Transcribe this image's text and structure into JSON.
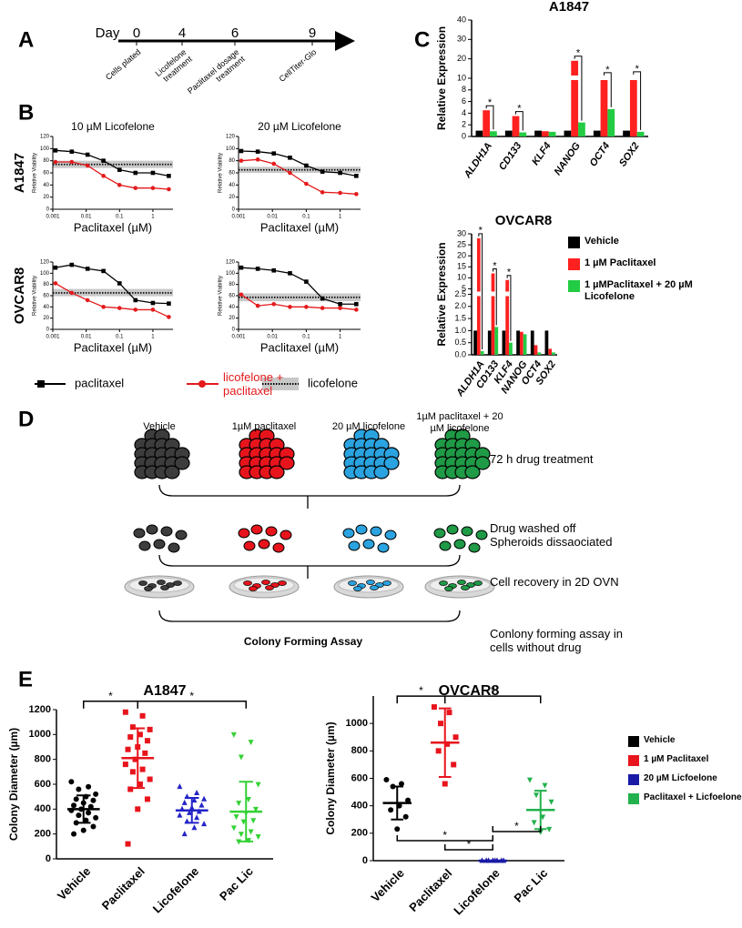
{
  "panel_labels": [
    "A",
    "B",
    "C",
    "D",
    "E"
  ],
  "timeline": {
    "axis_label": "Day",
    "days": [
      0,
      4,
      6,
      9
    ],
    "events": [
      "Cells plated",
      "Licofelone treatment",
      "Paclitaxel dosage treatment",
      "CellTiter-Glo"
    ]
  },
  "chart_data": [
    {
      "type": "dose-response",
      "title": "10 µM Licofelone",
      "row_label": "A1847",
      "x_label": "Paclitaxel (µM)",
      "y_label": "Relative Viability",
      "log_x": true,
      "xlim": [
        0.001,
        4
      ],
      "xticks": [
        0.001,
        0.01,
        0.1,
        1
      ],
      "ylim": [
        0,
        120
      ],
      "yticks": [
        0,
        20,
        40,
        60,
        80,
        100,
        120
      ],
      "x": [
        0.0012,
        0.0037,
        0.011,
        0.033,
        0.1,
        0.3,
        1,
        3
      ],
      "legend": "bottom",
      "series": [
        {
          "name": "paclitaxel",
          "color": "#000000",
          "marker": "square",
          "values": [
            97,
            95,
            90,
            80,
            65,
            60,
            60,
            55
          ]
        },
        {
          "name": "licofelone + paclitaxel",
          "color": "#e41a1c",
          "marker": "circle",
          "values": [
            78,
            78,
            72,
            55,
            40,
            35,
            35,
            33
          ]
        }
      ],
      "reference": {
        "name": "licofelone",
        "value": 74,
        "band": [
          68,
          80
        ],
        "color": "#c8c8c8"
      }
    },
    {
      "type": "dose-response",
      "title": "20 µM Licofelone",
      "x_label": "Paclitaxel (µM)",
      "y_label": "Relative Viability",
      "log_x": true,
      "xlim": [
        0.001,
        4
      ],
      "xticks": [
        0.001,
        0.01,
        0.1,
        1
      ],
      "ylim": [
        0,
        120
      ],
      "yticks": [
        0,
        20,
        40,
        60,
        80,
        100,
        120
      ],
      "x": [
        0.0012,
        0.0037,
        0.011,
        0.033,
        0.1,
        0.3,
        1,
        3
      ],
      "series": [
        {
          "color": "#000000",
          "marker": "square",
          "values": [
            96,
            95,
            92,
            85,
            72,
            62,
            60,
            55
          ]
        },
        {
          "color": "#e41a1c",
          "marker": "circle",
          "values": [
            80,
            82,
            75,
            60,
            42,
            28,
            27,
            25
          ]
        }
      ],
      "reference": {
        "value": 65,
        "band": [
          60,
          70
        ],
        "color": "#c8c8c8"
      }
    },
    {
      "type": "dose-response",
      "row_label": "OVCAR8",
      "x_label": "Paclitaxel (µM)",
      "y_label": "Relative Viability",
      "log_x": true,
      "xlim": [
        0.001,
        4
      ],
      "xticks": [
        0.001,
        0.01,
        0.1,
        1
      ],
      "ylim": [
        0,
        120
      ],
      "yticks": [
        0,
        20,
        40,
        60,
        80,
        100,
        120
      ],
      "x": [
        0.0012,
        0.0037,
        0.011,
        0.033,
        0.1,
        0.3,
        1,
        3
      ],
      "series": [
        {
          "color": "#000000",
          "marker": "square",
          "values": [
            110,
            115,
            108,
            104,
            82,
            52,
            47,
            46
          ]
        },
        {
          "color": "#e41a1c",
          "marker": "circle",
          "values": [
            82,
            65,
            52,
            40,
            38,
            35,
            35,
            22
          ]
        }
      ],
      "reference": {
        "value": 65,
        "band": [
          59,
          72
        ],
        "color": "#c8c8c8"
      }
    },
    {
      "type": "dose-response",
      "x_label": "Paclitaxel (µM)",
      "y_label": "Relative Viability",
      "log_x": true,
      "xlim": [
        0.001,
        4
      ],
      "xticks": [
        0.001,
        0.01,
        0.1,
        1
      ],
      "ylim": [
        0,
        120
      ],
      "yticks": [
        0,
        20,
        40,
        60,
        80,
        100,
        120
      ],
      "x": [
        0.0012,
        0.0037,
        0.011,
        0.033,
        0.1,
        0.3,
        1,
        3
      ],
      "series": [
        {
          "color": "#000000",
          "marker": "square",
          "values": [
            110,
            108,
            105,
            100,
            85,
            55,
            45,
            45
          ]
        },
        {
          "color": "#e41a1c",
          "marker": "circle",
          "values": [
            62,
            42,
            45,
            40,
            40,
            38,
            38,
            35
          ]
        }
      ],
      "reference": {
        "value": 57,
        "band": [
          50,
          64
        ],
        "color": "#c8c8c8"
      }
    },
    {
      "type": "grouped-bar",
      "title": "A1847",
      "y_label": "Relative Expression",
      "categories": [
        "ALDH1A",
        "CD133",
        "KLF4",
        "NANOG",
        "OCT4",
        "SOX2"
      ],
      "ylim": [
        0,
        40
      ],
      "ybreak": 10,
      "yticks": [
        0,
        2,
        4,
        6,
        8,
        10,
        20,
        30,
        40
      ],
      "series": [
        {
          "color": "#000000",
          "values": [
            1,
            1,
            1,
            1,
            1,
            1
          ]
        },
        {
          "color": "#ff2020",
          "values": [
            4.5,
            3.5,
            0.9,
            19,
            10.5,
            11
          ]
        },
        {
          "color": "#22cc44",
          "values": [
            0.9,
            0.7,
            0.8,
            2.4,
            4.7,
            0.8
          ]
        }
      ],
      "significance": [
        "*",
        "*",
        null,
        "*",
        "*",
        "*"
      ]
    },
    {
      "type": "grouped-bar",
      "title": "OVCAR8",
      "y_label": "Relative Expression",
      "categories": [
        "ALDH1A",
        "CD133",
        "KLF4",
        "NANOG",
        "OCT4",
        "SOX2"
      ],
      "ylim": [
        0,
        30
      ],
      "ybreak": 2.5,
      "yticks": [
        {
          "value": 0,
          "label": "0.0"
        },
        0.5,
        {
          "value": 1,
          "label": "1.0"
        },
        1.5,
        {
          "value": 2,
          "label": "2.0"
        },
        2.5,
        5,
        10,
        15,
        20,
        25,
        30
      ],
      "legend": true,
      "series": [
        {
          "name": "Vehicle",
          "color": "#000000",
          "values": [
            1,
            1,
            1,
            1,
            1,
            1
          ]
        },
        {
          "name": "1 µM Paclitaxel",
          "color": "#ff2020",
          "values": [
            28,
            12,
            9,
            0.95,
            0.4,
            0.25
          ]
        },
        {
          "name": "1 µMPaclitaxel + 20 µM Licofelone",
          "color": "#22cc44",
          "values": [
            0.15,
            1.15,
            0.5,
            0.85,
            0.1,
            0.1
          ]
        }
      ],
      "significance": [
        "*",
        "*",
        "*",
        null,
        null,
        null
      ]
    },
    {
      "type": "strip",
      "title": "A1847",
      "y_label": "Colony Diameter (µm)",
      "categories": [
        "Vehicle",
        "Paclitaxel",
        "Licofelone",
        "Pac Lic"
      ],
      "ylim": [
        0,
        1200
      ],
      "yticks": [
        0,
        200,
        400,
        600,
        800,
        1000,
        1200
      ],
      "series": [
        {
          "color": "#000000",
          "marker": "circle",
          "mean": 400,
          "sd": 110,
          "values": [
            620,
            580,
            560,
            520,
            500,
            480,
            470,
            450,
            430,
            420,
            400,
            390,
            370,
            350,
            330,
            310,
            290,
            260,
            230,
            200
          ]
        },
        {
          "color": "#e8141c",
          "marker": "square",
          "mean": 810,
          "sd": 240,
          "values": [
            1180,
            1150,
            1060,
            1040,
            1000,
            980,
            950,
            900,
            880,
            850,
            800,
            760,
            720,
            700,
            640,
            600,
            560,
            480,
            400,
            120
          ]
        },
        {
          "color": "#2323c8",
          "marker": "triangle-up",
          "mean": 390,
          "sd": 100,
          "values": [
            580,
            530,
            500,
            480,
            470,
            450,
            430,
            410,
            400,
            380,
            370,
            350,
            330,
            300,
            280,
            250,
            200
          ]
        },
        {
          "color": "#33d133",
          "marker": "triangle-down",
          "mean": 380,
          "sd": 240,
          "values": [
            1000,
            940,
            820,
            600,
            480,
            450,
            400,
            370,
            340,
            310,
            300,
            250,
            220,
            200,
            180,
            150,
            140
          ]
        }
      ],
      "comparisons": [
        {
          "groups": [
            "Vehicle",
            "Paclitaxel"
          ],
          "label": "*"
        },
        {
          "groups": [
            "Paclitaxel",
            "Pac Lic"
          ],
          "label": "*"
        }
      ]
    },
    {
      "type": "strip",
      "title": "OVCAR8",
      "y_label": "Colony Diameter (µm)",
      "categories": [
        "Vehicle",
        "Paclitaxel",
        "Licofelone",
        "Pac Lic"
      ],
      "ylim": [
        0,
        1200
      ],
      "yticks": [
        0,
        200,
        400,
        600,
        800,
        1000
      ],
      "legend": true,
      "series": [
        {
          "name": "Vehicle",
          "color": "#000000",
          "marker": "circle",
          "mean": 420,
          "sd": 120,
          "values": [
            590,
            560,
            540,
            440,
            400,
            370,
            320,
            230
          ]
        },
        {
          "name": "1 µM Paclitaxel",
          "color": "#e8141c",
          "marker": "square",
          "mean": 860,
          "sd": 250,
          "values": [
            1120,
            1080,
            1000,
            900,
            850,
            800,
            700,
            560
          ]
        },
        {
          "name": "20 µM Licfoelone",
          "color": "#1a1aa6",
          "marker": "triangle-up",
          "mean": 0,
          "sd": 0,
          "values": [
            0,
            0,
            0,
            0,
            0,
            0,
            0,
            0
          ]
        },
        {
          "name": "Paclitaxel + Licfoelone",
          "color": "#22b14c",
          "marker": "triangle-down",
          "mean": 370,
          "sd": 140,
          "values": [
            590,
            550,
            480,
            430,
            320,
            280,
            230,
            210
          ]
        }
      ],
      "comparisons": [
        {
          "groups": [
            "Vehicle",
            "Paclitaxel"
          ],
          "label": "*"
        },
        {
          "groups": [
            "Paclitaxel",
            "Pac Lic"
          ],
          "label": "*"
        },
        {
          "groups": [
            "Paclitaxel",
            "Licofelone"
          ],
          "label": "*"
        },
        {
          "groups": [
            "Vehicle",
            "Licofelone"
          ],
          "label": "*"
        },
        {
          "groups": [
            "Licofelone",
            "Pac Lic"
          ],
          "label": "*"
        }
      ]
    }
  ],
  "diagram": {
    "columns": [
      {
        "label": "Vehicle",
        "color": "#3d3d3d"
      },
      {
        "label": "1µM paclitaxel",
        "color": "#e8141c"
      },
      {
        "label": "20 µM licofelone",
        "color": "#2aa3e0"
      },
      {
        "label": "1µM  paclitaxel + 20 µM licofelone",
        "color": "#1f9a46"
      }
    ],
    "steps": [
      "72 h drug treatment",
      "Drug washed off Spheroids dissaociated",
      "Cell recovery in 2D OVN",
      "Conlony forming assay in cells without drug"
    ],
    "assay_label": "Colony Forming Assay"
  }
}
